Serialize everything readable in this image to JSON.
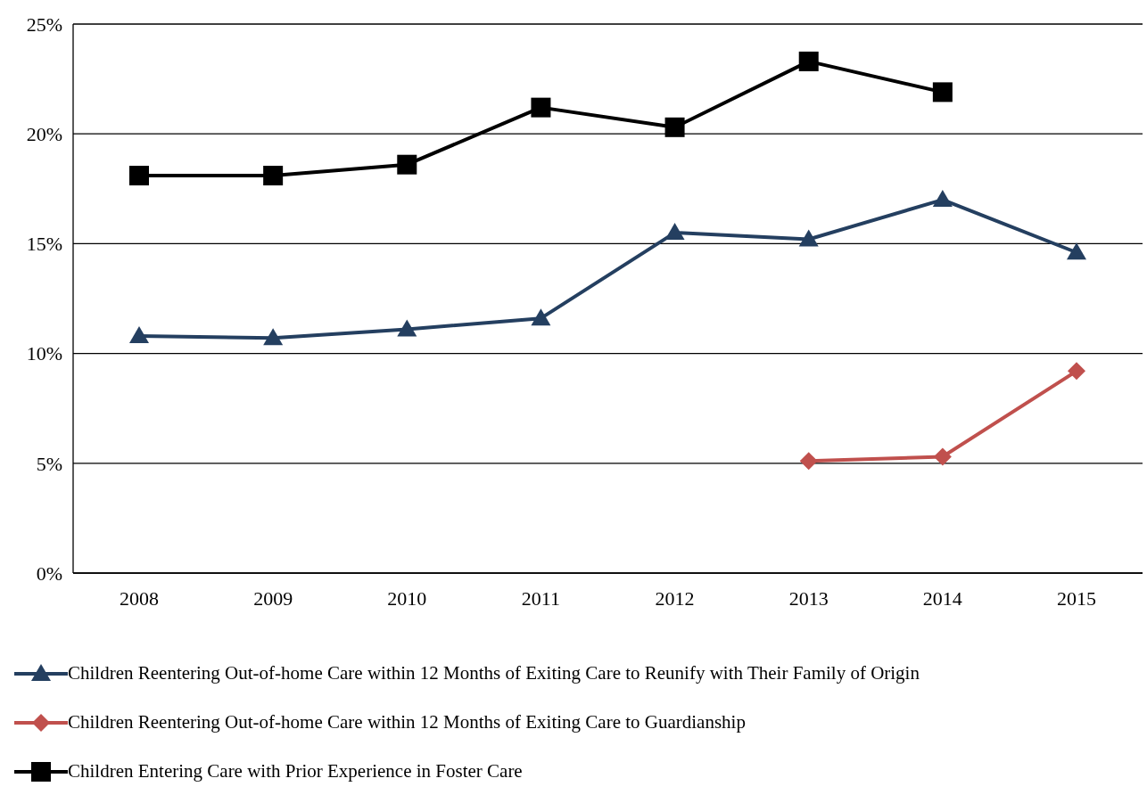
{
  "chart_data": {
    "type": "line",
    "categories": [
      "2008",
      "2009",
      "2010",
      "2011",
      "2012",
      "2013",
      "2014",
      "2015"
    ],
    "series": [
      {
        "name": "Children Reentering Out-of-home Care within 12 Months of Exiting Care to Reunify with Their Family of Origin",
        "color": "#243f60",
        "marker": "triangle",
        "values": [
          10.8,
          10.7,
          11.1,
          11.6,
          15.5,
          15.2,
          17.0,
          14.6
        ]
      },
      {
        "name": "Children Reentering Out-of-home Care within 12 Months of Exiting Care to Guardianship",
        "color": "#c0504d",
        "marker": "diamond",
        "values": [
          null,
          null,
          null,
          null,
          null,
          5.1,
          5.3,
          9.2
        ]
      },
      {
        "name": "Children Entering Care with Prior Experience in Foster Care",
        "color": "#000000",
        "marker": "square",
        "values": [
          18.1,
          18.1,
          18.6,
          21.2,
          20.3,
          23.3,
          21.9,
          null
        ]
      }
    ],
    "ylim": [
      0,
      25
    ],
    "yticks": [
      {
        "value": 0,
        "label": "0%"
      },
      {
        "value": 5,
        "label": "5%"
      },
      {
        "value": 10,
        "label": "10%"
      },
      {
        "value": 15,
        "label": "15%"
      },
      {
        "value": 20,
        "label": "20%"
      },
      {
        "value": 25,
        "label": "25%"
      }
    ],
    "grid": "y",
    "legend": "bottom",
    "line_style": "solid"
  }
}
